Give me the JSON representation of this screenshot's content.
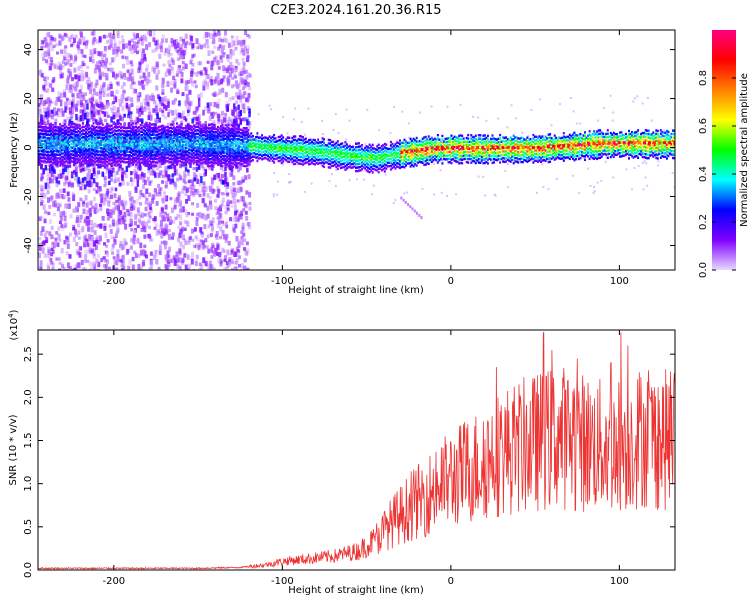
{
  "title": "C2E3.2024.161.20.36.R15",
  "chart_data": [
    {
      "type": "heatmap",
      "xlabel": "Height of straight line (km)",
      "ylabel": "Frequency (Hz)",
      "xlim": [
        -245,
        133
      ],
      "ylim": [
        -50,
        48
      ],
      "x_ticks": [
        -200,
        -100,
        0,
        100
      ],
      "y_ticks": [
        -40,
        -20,
        0,
        20,
        40
      ],
      "colorbar": {
        "label": "Normalized spectral amplitude",
        "range": [
          0.0,
          1.0
        ],
        "ticks": [
          0.0,
          0.2,
          0.4,
          0.6,
          0.8
        ],
        "colormap": [
          "#e8d8ff",
          "#8000ff",
          "#0000ff",
          "#00ffff",
          "#00ff00",
          "#ffff00",
          "#ff8000",
          "#ff0000",
          "#ff0080"
        ]
      },
      "centerline": [
        {
          "x": -245,
          "y": 2
        },
        {
          "x": -200,
          "y": 2
        },
        {
          "x": -150,
          "y": 2
        },
        {
          "x": -120,
          "y": 1
        },
        {
          "x": -100,
          "y": 0
        },
        {
          "x": -80,
          "y": -1
        },
        {
          "x": -60,
          "y": -3
        },
        {
          "x": -45,
          "y": -4
        },
        {
          "x": -30,
          "y": -2
        },
        {
          "x": -10,
          "y": 0
        },
        {
          "x": 10,
          "y": 0
        },
        {
          "x": 30,
          "y": 0
        },
        {
          "x": 50,
          "y": 0
        },
        {
          "x": 70,
          "y": 1
        },
        {
          "x": 90,
          "y": 2
        },
        {
          "x": 110,
          "y": 2
        },
        {
          "x": 133,
          "y": 2
        }
      ],
      "band_halfwidth": 4,
      "scatter_region": {
        "x": [
          -245,
          -120
        ],
        "y": [
          -50,
          48
        ]
      },
      "trail": [
        {
          "x": -30,
          "y": -20
        },
        {
          "x": -18,
          "y": -28
        }
      ]
    },
    {
      "type": "line",
      "xlabel": "Height of straight line (km)",
      "ylabel": "SNR (10 * v/v)",
      "y_multiplier": "(x10^4)",
      "xlim": [
        -245,
        133
      ],
      "ylim": [
        0,
        2.78
      ],
      "x_ticks": [
        -200,
        -100,
        0,
        100
      ],
      "y_ticks": [
        0.0,
        0.5,
        1.0,
        1.5,
        2.0,
        2.5
      ],
      "series": [
        {
          "color": "#ee3333",
          "envelope": [
            {
              "x": -245,
              "y": 0.02
            },
            {
              "x": -200,
              "y": 0.02
            },
            {
              "x": -150,
              "y": 0.02
            },
            {
              "x": -125,
              "y": 0.03
            },
            {
              "x": -110,
              "y": 0.06
            },
            {
              "x": -100,
              "y": 0.1
            },
            {
              "x": -85,
              "y": 0.13
            },
            {
              "x": -70,
              "y": 0.16
            },
            {
              "x": -55,
              "y": 0.22
            },
            {
              "x": -45,
              "y": 0.35
            },
            {
              "x": -35,
              "y": 0.55
            },
            {
              "x": -25,
              "y": 0.72
            },
            {
              "x": -15,
              "y": 0.85
            },
            {
              "x": -5,
              "y": 1.0
            },
            {
              "x": 5,
              "y": 1.1
            },
            {
              "x": 15,
              "y": 1.2
            },
            {
              "x": 25,
              "y": 1.32
            },
            {
              "x": 35,
              "y": 1.4
            },
            {
              "x": 45,
              "y": 1.45
            },
            {
              "x": 55,
              "y": 1.5
            },
            {
              "x": 65,
              "y": 1.55
            },
            {
              "x": 75,
              "y": 1.5
            },
            {
              "x": 85,
              "y": 1.45
            },
            {
              "x": 95,
              "y": 1.42
            },
            {
              "x": 105,
              "y": 1.5
            },
            {
              "x": 115,
              "y": 1.55
            },
            {
              "x": 125,
              "y": 1.5
            },
            {
              "x": 133,
              "y": 1.52
            }
          ],
          "peaks": [
            {
              "x": 27,
              "y": 2.35
            },
            {
              "x": 55,
              "y": 2.75
            },
            {
              "x": 60,
              "y": 2.55
            },
            {
              "x": 75,
              "y": 2.45
            },
            {
              "x": 95,
              "y": 2.4
            },
            {
              "x": 101,
              "y": 2.75
            },
            {
              "x": 105,
              "y": 2.6
            },
            {
              "x": 128,
              "y": 2.15
            }
          ]
        }
      ]
    }
  ]
}
